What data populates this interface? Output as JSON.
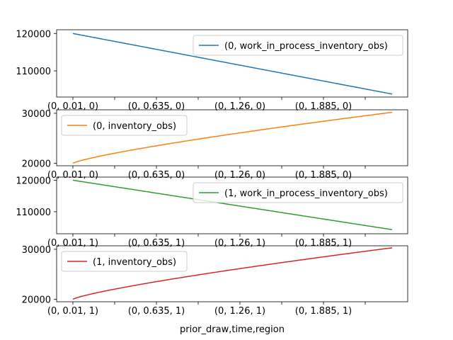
{
  "chart_data": [
    {
      "type": "line",
      "series": [
        {
          "name": "(0, work_in_process_inventory_obs)",
          "color": "#1f77b4",
          "start": 120000,
          "end": 103800,
          "shape": "linear"
        }
      ],
      "ylim": [
        103000,
        121000
      ],
      "yticks": [
        110000,
        120000
      ],
      "ytick_labels": [
        "110000",
        "120000"
      ],
      "xtick_labels": [
        "(0, 0.01, 0)",
        "(0, 0.635, 0)",
        "(0, 1.26, 0)",
        "(0, 1.885, 0)"
      ],
      "legend": "upper right"
    },
    {
      "type": "line",
      "series": [
        {
          "name": "(0, inventory_obs)",
          "color": "#ff7f0e",
          "start": 20000,
          "end": 30200,
          "shape": "concave"
        }
      ],
      "ylim": [
        19500,
        30700
      ],
      "yticks": [
        20000,
        30000
      ],
      "ytick_labels": [
        "20000",
        "30000"
      ],
      "xtick_labels": [
        "(0, 0.01, 0)",
        "(0, 0.635, 0)",
        "(0, 1.26, 0)",
        "(0, 1.885, 0)"
      ],
      "legend": "upper left"
    },
    {
      "type": "line",
      "series": [
        {
          "name": "(1, work_in_process_inventory_obs)",
          "color": "#2ca02c",
          "start": 120000,
          "end": 104300,
          "shape": "linear"
        }
      ],
      "ylim": [
        103000,
        121000
      ],
      "yticks": [
        110000,
        120000
      ],
      "ytick_labels": [
        "110000",
        "120000"
      ],
      "xtick_labels": [
        "(0, 0.01, 1)",
        "(0, 0.635, 1)",
        "(0, 1.26, 1)",
        "(0, 1.885, 1)"
      ],
      "legend": "upper right"
    },
    {
      "type": "line",
      "series": [
        {
          "name": "(1, inventory_obs)",
          "color": "#d62728",
          "start": 20000,
          "end": 30300,
          "shape": "concave"
        }
      ],
      "ylim": [
        19500,
        30700
      ],
      "yticks": [
        20000,
        30000
      ],
      "ytick_labels": [
        "20000",
        "30000"
      ],
      "xtick_labels": [
        "(0, 0.01, 1)",
        "(0, 0.635, 1)",
        "(0, 1.26, 1)",
        "(0, 1.885, 1)"
      ],
      "legend": "upper left"
    }
  ],
  "xlabel": "prior_draw,time,region"
}
